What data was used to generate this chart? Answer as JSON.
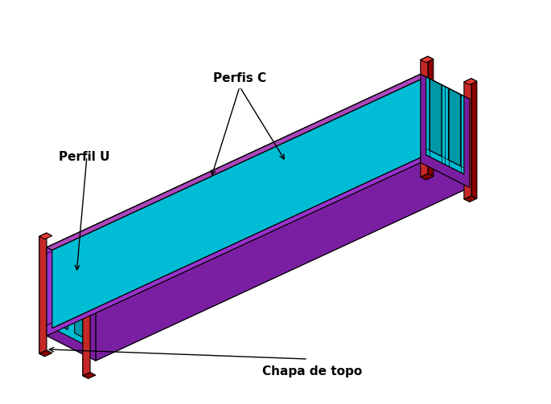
{
  "colors": {
    "purple": "#9932CC",
    "purple_dark": "#7B1FA2",
    "purple_top": "#AB47BC",
    "cyan": "#00BCD4",
    "cyan_dark": "#0097A7",
    "cyan_top": "#26C6DA",
    "red": "#C62828",
    "red_dark": "#8B0000",
    "red_top": "#E53935",
    "background": "#FFFFFF",
    "outline": "#000000"
  },
  "labels": {
    "perfis_c": "Perfis C",
    "perfil_u": "Perfil U",
    "chapa_de_topo": "Chapa de topo"
  },
  "font_size": 11,
  "font_weight": "bold",
  "figsize": [
    6.85,
    5.03
  ],
  "dpi": 100
}
